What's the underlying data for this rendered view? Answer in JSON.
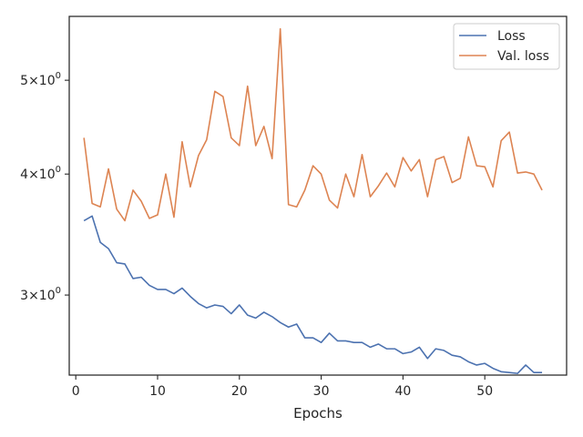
{
  "chart_data": {
    "type": "line",
    "xlabel": "Epochs",
    "ylabel": "",
    "y_scale": "log",
    "xlim": [
      -0.8,
      60
    ],
    "ylim": [
      2.48,
      5.82
    ],
    "x_ticks": [
      {
        "value": 0,
        "label": "0"
      },
      {
        "value": 10,
        "label": "10"
      },
      {
        "value": 20,
        "label": "20"
      },
      {
        "value": 30,
        "label": "30"
      },
      {
        "value": 40,
        "label": "40"
      },
      {
        "value": 50,
        "label": "50"
      }
    ],
    "y_ticks": [
      {
        "value": 3,
        "base": "3",
        "sep": "×",
        "power": "10",
        "exp": "0"
      },
      {
        "value": 4,
        "base": "4",
        "sep": "×",
        "power": "10",
        "exp": "0"
      },
      {
        "value": 5,
        "base": "5",
        "sep": "×",
        "power": "10",
        "exp": "0"
      }
    ],
    "grid": false,
    "legend_position": "top-right",
    "series": [
      {
        "name": "Loss",
        "color": "#4c72b0",
        "x": [
          1,
          2,
          3,
          4,
          5,
          6,
          7,
          8,
          9,
          10,
          11,
          12,
          13,
          14,
          15,
          16,
          17,
          18,
          19,
          20,
          21,
          22,
          23,
          24,
          25,
          26,
          27,
          28,
          29,
          30,
          31,
          32,
          33,
          34,
          35,
          36,
          37,
          38,
          39,
          40,
          41,
          42,
          43,
          44,
          45,
          46,
          47,
          48,
          49,
          50,
          51,
          52,
          53,
          54,
          55,
          56,
          57
        ],
        "values": [
          3.58,
          3.62,
          3.4,
          3.35,
          3.24,
          3.23,
          3.12,
          3.13,
          3.07,
          3.04,
          3.04,
          3.01,
          3.05,
          2.99,
          2.94,
          2.91,
          2.93,
          2.92,
          2.87,
          2.93,
          2.86,
          2.84,
          2.88,
          2.85,
          2.81,
          2.78,
          2.8,
          2.71,
          2.71,
          2.68,
          2.74,
          2.69,
          2.69,
          2.68,
          2.68,
          2.65,
          2.67,
          2.64,
          2.64,
          2.61,
          2.62,
          2.65,
          2.58,
          2.64,
          2.63,
          2.6,
          2.59,
          2.56,
          2.54,
          2.55,
          2.52,
          2.5,
          2.495,
          2.49,
          2.54,
          2.495,
          2.495
        ]
      },
      {
        "name": "Val. loss",
        "color": "#dd8452",
        "x": [
          1,
          2,
          3,
          4,
          5,
          6,
          7,
          8,
          9,
          10,
          11,
          12,
          13,
          14,
          15,
          16,
          17,
          18,
          19,
          20,
          21,
          22,
          23,
          24,
          25,
          26,
          27,
          28,
          29,
          30,
          31,
          32,
          33,
          34,
          35,
          36,
          37,
          38,
          39,
          40,
          41,
          42,
          43,
          44,
          45,
          46,
          47,
          48,
          49,
          50,
          51,
          52,
          53,
          54,
          55,
          56,
          57
        ],
        "values": [
          4.36,
          3.73,
          3.7,
          4.05,
          3.68,
          3.58,
          3.85,
          3.75,
          3.6,
          3.63,
          4.0,
          3.61,
          4.32,
          3.88,
          4.18,
          4.34,
          4.87,
          4.81,
          4.36,
          4.28,
          4.93,
          4.28,
          4.48,
          4.15,
          5.65,
          3.72,
          3.7,
          3.85,
          4.08,
          4.0,
          3.76,
          3.69,
          4.0,
          3.79,
          4.19,
          3.79,
          3.89,
          4.01,
          3.88,
          4.16,
          4.03,
          4.14,
          3.79,
          4.14,
          4.17,
          3.92,
          3.96,
          4.37,
          4.08,
          4.07,
          3.88,
          4.33,
          4.42,
          4.01,
          4.02,
          4.0,
          3.85
        ]
      }
    ]
  }
}
